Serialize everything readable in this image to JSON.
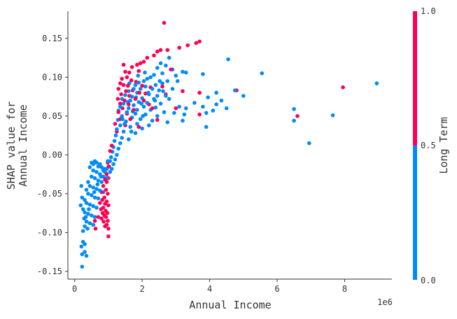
{
  "chart_data": {
    "type": "scatter",
    "xlabel": "Annual Income",
    "ylabel": [
      "SHAP value for",
      "Annual Income"
    ],
    "x_scale_note": "1e6",
    "xlim": [
      -0.2,
      9.4
    ],
    "ylim": [
      -0.16,
      0.185
    ],
    "xticks": [
      0,
      2,
      4,
      6,
      8
    ],
    "xtick_labels": [
      "0",
      "2",
      "4",
      "6",
      "8"
    ],
    "yticks": [
      -0.15,
      -0.1,
      -0.05,
      0.0,
      0.05,
      0.1,
      0.15
    ],
    "ytick_labels": [
      "-0.15",
      "-0.10",
      "-0.05",
      "0.00",
      "0.05",
      "0.10",
      "0.15"
    ],
    "colorbar": {
      "label": "Long Term",
      "min_label": "0.0",
      "mid_label": "0.5",
      "max_label": "1.0",
      "low_color": "#008bfb",
      "high_color": "#ff0051"
    },
    "series": [
      {
        "name": "Long Term = 1",
        "color": "#ff0051",
        "points": [
          [
            2.65,
            0.17
          ],
          [
            3.7,
            0.146
          ],
          [
            3.6,
            0.144
          ],
          [
            3.35,
            0.141
          ],
          [
            3.1,
            0.138
          ],
          [
            2.75,
            0.135
          ],
          [
            2.55,
            0.135
          ],
          [
            2.45,
            0.133
          ],
          [
            2.35,
            0.128
          ],
          [
            2.15,
            0.125
          ],
          [
            2.05,
            0.12
          ],
          [
            1.95,
            0.118
          ],
          [
            1.85,
            0.116
          ],
          [
            1.45,
            0.116
          ],
          [
            1.7,
            0.113
          ],
          [
            2.85,
            0.11
          ],
          [
            1.5,
            0.107
          ],
          [
            1.62,
            0.106
          ],
          [
            1.9,
            0.108
          ],
          [
            1.55,
            0.1
          ],
          [
            1.4,
            0.098
          ],
          [
            1.68,
            0.096
          ],
          [
            1.82,
            0.094
          ],
          [
            1.35,
            0.092
          ],
          [
            1.45,
            0.09
          ],
          [
            1.58,
            0.089
          ],
          [
            2.0,
            0.089
          ],
          [
            2.25,
            0.087
          ],
          [
            2.6,
            0.088
          ],
          [
            1.3,
            0.085
          ],
          [
            1.52,
            0.082
          ],
          [
            1.72,
            0.083
          ],
          [
            3.2,
            0.082
          ],
          [
            4.8,
            0.083
          ],
          [
            7.95,
            0.087
          ],
          [
            1.38,
            0.078
          ],
          [
            1.62,
            0.076
          ],
          [
            1.92,
            0.08
          ],
          [
            2.1,
            0.079
          ],
          [
            2.7,
            0.078
          ],
          [
            3.7,
            0.08
          ],
          [
            1.28,
            0.072
          ],
          [
            1.48,
            0.07
          ],
          [
            1.8,
            0.072
          ],
          [
            2.05,
            0.07
          ],
          [
            1.35,
            0.066
          ],
          [
            1.6,
            0.065
          ],
          [
            2.2,
            0.065
          ],
          [
            1.42,
            0.06
          ],
          [
            1.75,
            0.058
          ],
          [
            2.3,
            0.06
          ],
          [
            3.0,
            0.06
          ],
          [
            6.6,
            0.05
          ],
          [
            1.3,
            0.055
          ],
          [
            1.55,
            0.053
          ],
          [
            3.7,
            0.052
          ],
          [
            1.35,
            0.046
          ],
          [
            1.65,
            0.046
          ],
          [
            2.45,
            0.045
          ],
          [
            1.2,
            0.04
          ],
          [
            1.5,
            0.038
          ],
          [
            1.9,
            0.036
          ],
          [
            1.25,
            0.03
          ],
          [
            1.1,
            0.012
          ],
          [
            1.05,
            0.005
          ],
          [
            0.98,
            -0.01
          ],
          [
            1.02,
            -0.015
          ],
          [
            0.95,
            -0.025
          ],
          [
            1.0,
            -0.03
          ],
          [
            0.9,
            -0.032
          ],
          [
            0.95,
            -0.035
          ],
          [
            0.85,
            -0.04
          ],
          [
            0.93,
            -0.045
          ],
          [
            0.8,
            -0.048
          ],
          [
            0.98,
            -0.05
          ],
          [
            0.88,
            -0.055
          ],
          [
            0.82,
            -0.058
          ],
          [
            0.95,
            -0.06
          ],
          [
            0.75,
            -0.062
          ],
          [
            0.9,
            -0.063
          ],
          [
            1.0,
            -0.065
          ],
          [
            0.85,
            -0.068
          ],
          [
            0.78,
            -0.07
          ],
          [
            0.92,
            -0.072
          ],
          [
            0.97,
            -0.075
          ],
          [
            0.83,
            -0.075
          ],
          [
            0.88,
            -0.078
          ],
          [
            0.93,
            -0.08
          ],
          [
            0.8,
            -0.082
          ],
          [
            0.98,
            -0.085
          ],
          [
            0.86,
            -0.086
          ],
          [
            0.95,
            -0.09
          ],
          [
            0.9,
            -0.092
          ],
          [
            1.0,
            -0.095
          ],
          [
            0.62,
            -0.095
          ],
          [
            0.55,
            -0.09
          ],
          [
            1.0,
            -0.105
          ],
          [
            0.7,
            -0.08
          ],
          [
            0.6,
            -0.085
          ]
        ]
      },
      {
        "name": "Long Term = 0",
        "color": "#008bfb",
        "points": [
          [
            8.95,
            0.092
          ],
          [
            5.55,
            0.105
          ],
          [
            4.55,
            0.123
          ],
          [
            4.75,
            0.083
          ],
          [
            5.0,
            0.076
          ],
          [
            4.35,
            0.07
          ],
          [
            4.2,
            0.065
          ],
          [
            4.1,
            0.057
          ],
          [
            4.5,
            0.06
          ],
          [
            6.5,
            0.059
          ],
          [
            6.5,
            0.044
          ],
          [
            7.65,
            0.051
          ],
          [
            6.95,
            0.015
          ],
          [
            3.9,
            0.054
          ],
          [
            3.8,
            0.062
          ],
          [
            3.95,
            0.074
          ],
          [
            4.2,
            0.08
          ],
          [
            3.55,
            0.067
          ],
          [
            3.3,
            0.06
          ],
          [
            3.1,
            0.062
          ],
          [
            3.25,
            0.052
          ],
          [
            2.95,
            0.054
          ],
          [
            3.2,
            0.044
          ],
          [
            3.9,
            0.036
          ],
          [
            3.8,
            0.104
          ],
          [
            3.3,
            0.106
          ],
          [
            3.2,
            0.107
          ],
          [
            2.9,
            0.11
          ],
          [
            2.7,
            0.115
          ],
          [
            2.8,
            0.125
          ],
          [
            2.55,
            0.118
          ],
          [
            2.45,
            0.112
          ],
          [
            2.6,
            0.105
          ],
          [
            2.35,
            0.103
          ],
          [
            2.25,
            0.1
          ],
          [
            2.15,
            0.098
          ],
          [
            2.05,
            0.095
          ],
          [
            1.9,
            0.093
          ],
          [
            1.8,
            0.09
          ],
          [
            2.4,
            0.09
          ],
          [
            2.6,
            0.092
          ],
          [
            2.75,
            0.095
          ],
          [
            3.05,
            0.095
          ],
          [
            2.1,
            0.088
          ],
          [
            1.95,
            0.085
          ],
          [
            1.75,
            0.085
          ],
          [
            2.3,
            0.085
          ],
          [
            2.5,
            0.083
          ],
          [
            2.9,
            0.085
          ],
          [
            1.6,
            0.082
          ],
          [
            1.85,
            0.08
          ],
          [
            2.2,
            0.078
          ],
          [
            2.45,
            0.076
          ],
          [
            2.7,
            0.076
          ],
          [
            1.5,
            0.077
          ],
          [
            1.7,
            0.075
          ],
          [
            2.0,
            0.073
          ],
          [
            2.35,
            0.072
          ],
          [
            2.8,
            0.072
          ],
          [
            1.4,
            0.072
          ],
          [
            1.65,
            0.07
          ],
          [
            1.9,
            0.068
          ],
          [
            2.15,
            0.067
          ],
          [
            2.55,
            0.066
          ],
          [
            1.45,
            0.066
          ],
          [
            1.75,
            0.064
          ],
          [
            2.05,
            0.062
          ],
          [
            2.4,
            0.061
          ],
          [
            1.35,
            0.062
          ],
          [
            1.6,
            0.06
          ],
          [
            1.85,
            0.058
          ],
          [
            2.25,
            0.058
          ],
          [
            2.65,
            0.055
          ],
          [
            1.3,
            0.057
          ],
          [
            1.55,
            0.055
          ],
          [
            1.8,
            0.053
          ],
          [
            2.1,
            0.052
          ],
          [
            2.45,
            0.05
          ],
          [
            1.4,
            0.05
          ],
          [
            1.7,
            0.048
          ],
          [
            1.95,
            0.046
          ],
          [
            2.3,
            0.044
          ],
          [
            2.75,
            0.042
          ],
          [
            1.28,
            0.045
          ],
          [
            1.52,
            0.043
          ],
          [
            1.85,
            0.04
          ],
          [
            2.2,
            0.038
          ],
          [
            1.35,
            0.038
          ],
          [
            1.65,
            0.036
          ],
          [
            2.0,
            0.034
          ],
          [
            1.25,
            0.033
          ],
          [
            1.45,
            0.03
          ],
          [
            1.8,
            0.028
          ],
          [
            1.22,
            0.025
          ],
          [
            1.4,
            0.022
          ],
          [
            1.6,
            0.02
          ],
          [
            1.18,
            0.018
          ],
          [
            1.35,
            0.015
          ],
          [
            1.15,
            0.01
          ],
          [
            1.3,
            0.008
          ],
          [
            1.12,
            0.004
          ],
          [
            1.25,
            0.0
          ],
          [
            1.08,
            -0.003
          ],
          [
            1.2,
            -0.006
          ],
          [
            1.05,
            -0.008
          ],
          [
            1.15,
            -0.012
          ],
          [
            1.0,
            -0.015
          ],
          [
            1.1,
            -0.018
          ],
          [
            0.95,
            -0.018
          ],
          [
            1.05,
            -0.022
          ],
          [
            0.9,
            -0.022
          ],
          [
            0.85,
            -0.02
          ],
          [
            0.8,
            -0.016
          ],
          [
            0.75,
            -0.012
          ],
          [
            0.7,
            -0.015
          ],
          [
            0.65,
            -0.01
          ],
          [
            0.6,
            -0.008
          ],
          [
            0.55,
            -0.012
          ],
          [
            0.5,
            -0.01
          ],
          [
            0.45,
            -0.016
          ],
          [
            0.55,
            -0.02
          ],
          [
            0.65,
            -0.022
          ],
          [
            0.75,
            -0.025
          ],
          [
            0.85,
            -0.028
          ],
          [
            0.95,
            -0.03
          ],
          [
            0.5,
            -0.028
          ],
          [
            0.6,
            -0.03
          ],
          [
            0.7,
            -0.033
          ],
          [
            0.8,
            -0.035
          ],
          [
            0.4,
            -0.035
          ],
          [
            0.45,
            -0.04
          ],
          [
            0.55,
            -0.042
          ],
          [
            0.65,
            -0.044
          ],
          [
            0.75,
            -0.046
          ],
          [
            0.85,
            -0.048
          ],
          [
            0.35,
            -0.045
          ],
          [
            0.4,
            -0.05
          ],
          [
            0.5,
            -0.052
          ],
          [
            0.6,
            -0.055
          ],
          [
            0.7,
            -0.056
          ],
          [
            0.3,
            -0.058
          ],
          [
            0.35,
            -0.062
          ],
          [
            0.45,
            -0.064
          ],
          [
            0.55,
            -0.066
          ],
          [
            0.65,
            -0.068
          ],
          [
            0.25,
            -0.07
          ],
          [
            0.3,
            -0.074
          ],
          [
            0.4,
            -0.076
          ],
          [
            0.5,
            -0.078
          ],
          [
            0.6,
            -0.08
          ],
          [
            0.28,
            -0.082
          ],
          [
            0.35,
            -0.086
          ],
          [
            0.45,
            -0.088
          ],
          [
            0.55,
            -0.09
          ],
          [
            0.3,
            -0.092
          ],
          [
            0.38,
            -0.095
          ],
          [
            0.25,
            -0.098
          ],
          [
            0.2,
            -0.04
          ],
          [
            0.22,
            -0.055
          ],
          [
            0.18,
            -0.065
          ],
          [
            0.25,
            -0.112
          ],
          [
            0.3,
            -0.115
          ],
          [
            0.2,
            -0.118
          ],
          [
            0.3,
            -0.125
          ],
          [
            0.22,
            -0.128
          ],
          [
            0.35,
            -0.13
          ],
          [
            0.22,
            -0.144
          ],
          [
            0.33,
            -0.08
          ],
          [
            0.42,
            -0.07
          ],
          [
            0.58,
            -0.048
          ],
          [
            0.68,
            -0.038
          ],
          [
            0.78,
            -0.028
          ],
          [
            0.88,
            -0.018
          ],
          [
            0.98,
            -0.008
          ],
          [
            1.48,
            0.04
          ],
          [
            1.72,
            0.056
          ],
          [
            1.98,
            0.066
          ],
          [
            2.18,
            0.08
          ],
          [
            1.62,
            0.092
          ],
          [
            1.88,
            0.102
          ],
          [
            2.08,
            0.106
          ],
          [
            1.42,
            0.046
          ],
          [
            1.58,
            0.068
          ],
          [
            1.82,
            0.074
          ],
          [
            2.52,
            0.095
          ],
          [
            3.0,
            0.102
          ],
          [
            2.62,
            0.082
          ],
          [
            2.38,
            0.07
          ],
          [
            2.02,
            0.05
          ],
          [
            1.68,
            0.03
          ]
        ]
      }
    ]
  }
}
